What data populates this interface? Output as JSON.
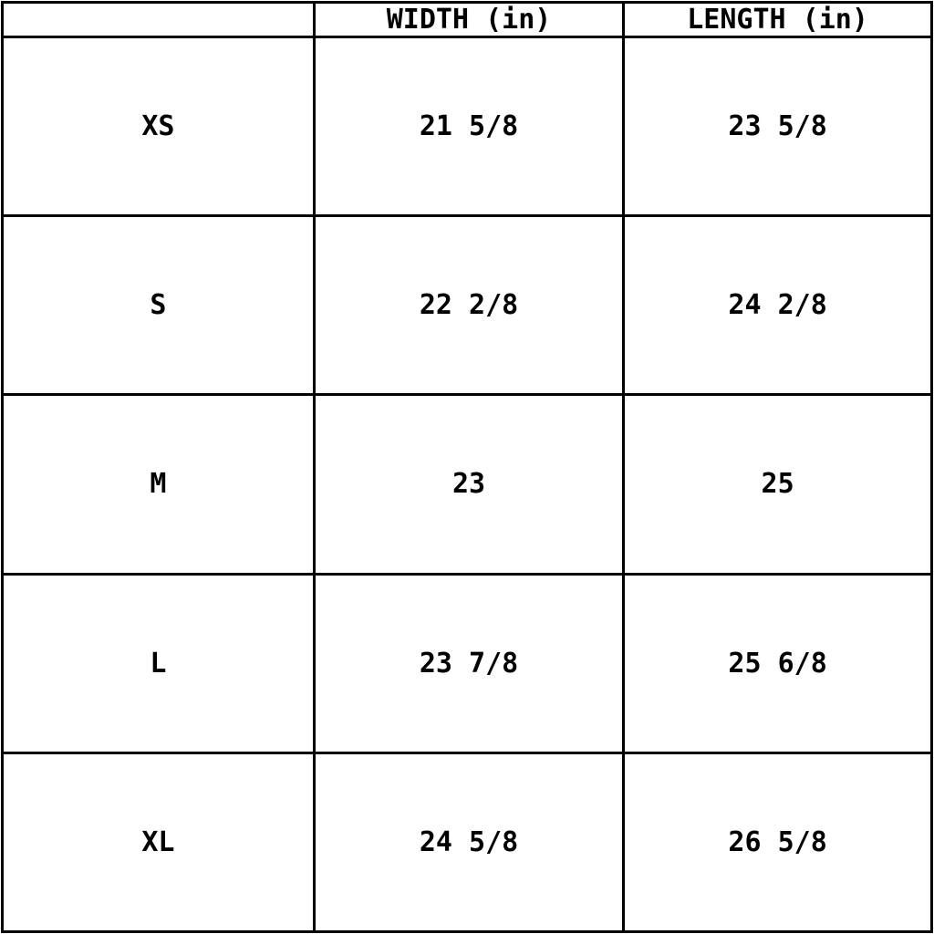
{
  "colors": {
    "background": "#ffffff",
    "border": "#000000",
    "text": "#000000"
  },
  "table": {
    "columns": [
      {
        "label": ""
      },
      {
        "label": "WIDTH (in)"
      },
      {
        "label": "LENGTH (in)"
      }
    ],
    "rows": [
      {
        "size": "XS",
        "width": "21 5/8",
        "length": "23 5/8"
      },
      {
        "size": "S",
        "width": "22 2/8",
        "length": "24 2/8"
      },
      {
        "size": "M",
        "width": "23",
        "length": "25"
      },
      {
        "size": "L",
        "width": "23 7/8",
        "length": "25 6/8"
      },
      {
        "size": "XL",
        "width": "24 5/8",
        "length": "26 5/8"
      }
    ]
  },
  "chart_data": {
    "type": "table",
    "title": "",
    "columns": [
      "",
      "WIDTH (in)",
      "LENGTH (in)"
    ],
    "categories": [
      "XS",
      "S",
      "M",
      "L",
      "XL"
    ],
    "series": [
      {
        "name": "WIDTH (in)",
        "values": [
          "21 5/8",
          "22 2/8",
          "23",
          "23 7/8",
          "24 5/8"
        ]
      },
      {
        "name": "LENGTH (in)",
        "values": [
          "23 5/8",
          "24 2/8",
          "25",
          "25 6/8",
          "26 5/8"
        ]
      }
    ],
    "units": "inches",
    "grid": "full-borders"
  }
}
